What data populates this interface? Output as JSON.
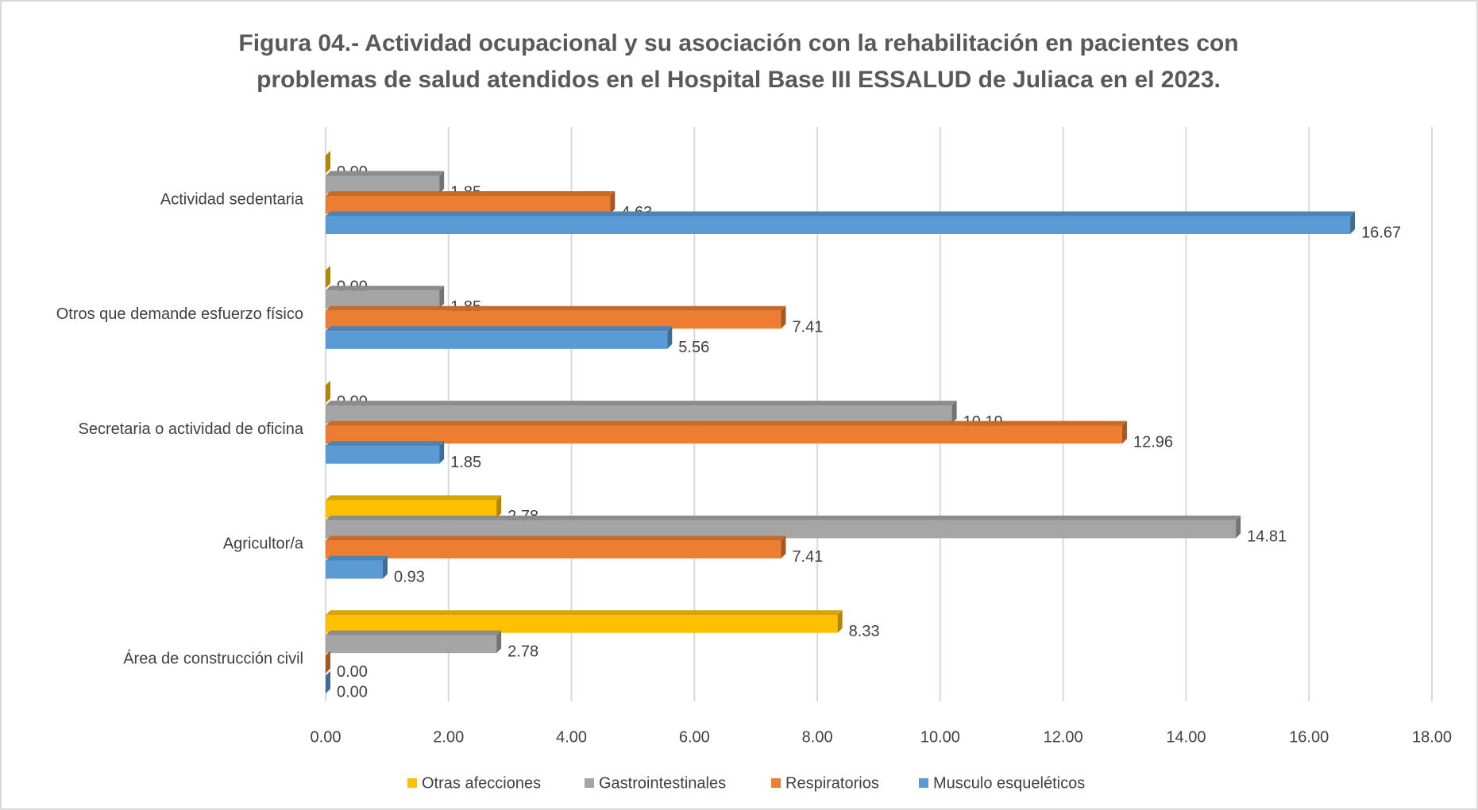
{
  "chart_data": {
    "type": "bar",
    "orientation": "horizontal",
    "title": [
      "Figura 04.- Actividad ocupacional y su asociación con la rehabilitación en pacientes con",
      "problemas de salud atendidos en el Hospital Base III ESSALUD de Juliaca en el 2023."
    ],
    "categories": [
      "Actividad sedentaria",
      "Otros que demande esfuerzo físico",
      "Secretaria o actividad de oficina",
      "Agricultor/a",
      "Área de construcción civil"
    ],
    "series": [
      {
        "name": "Otras afecciones",
        "color": "#FFC000",
        "values": [
          0,
          0,
          0,
          2.78,
          8.33
        ],
        "value_labels": [
          "0.00",
          "0.00",
          "0.00",
          "2.78",
          "8.33"
        ]
      },
      {
        "name": "Gastrointestinales",
        "color": "#A5A5A5",
        "values": [
          1.85,
          1.85,
          10.19,
          14.81,
          2.78
        ],
        "value_labels": [
          "1.85",
          "1.85",
          "10.19",
          "14.81",
          "2.78"
        ]
      },
      {
        "name": "Respiratorios",
        "color": "#ED7D31",
        "values": [
          4.63,
          7.41,
          12.96,
          7.41,
          0
        ],
        "value_labels": [
          "4.63",
          "7.41",
          "12.96",
          "7.41",
          "0.00"
        ]
      },
      {
        "name": "Musculo esqueléticos",
        "color": "#5B9BD5",
        "values": [
          16.67,
          5.56,
          1.85,
          0.93,
          0
        ],
        "value_labels": [
          "16.67",
          "5.56",
          "1.85",
          "0.93",
          "0.00"
        ]
      }
    ],
    "xlim": [
      0,
      18
    ],
    "xticks": [
      {
        "value": 0,
        "label": "0.00"
      },
      {
        "value": 2,
        "label": "2.00"
      },
      {
        "value": 4,
        "label": "4.00"
      },
      {
        "value": 6,
        "label": "6.00"
      },
      {
        "value": 8,
        "label": "8.00"
      },
      {
        "value": 10,
        "label": "10.00"
      },
      {
        "value": 12,
        "label": "12.00"
      },
      {
        "value": 14,
        "label": "14.00"
      },
      {
        "value": 16,
        "label": "16.00"
      },
      {
        "value": 18,
        "label": "18.00"
      }
    ],
    "grid": true,
    "legend": "bottom"
  }
}
